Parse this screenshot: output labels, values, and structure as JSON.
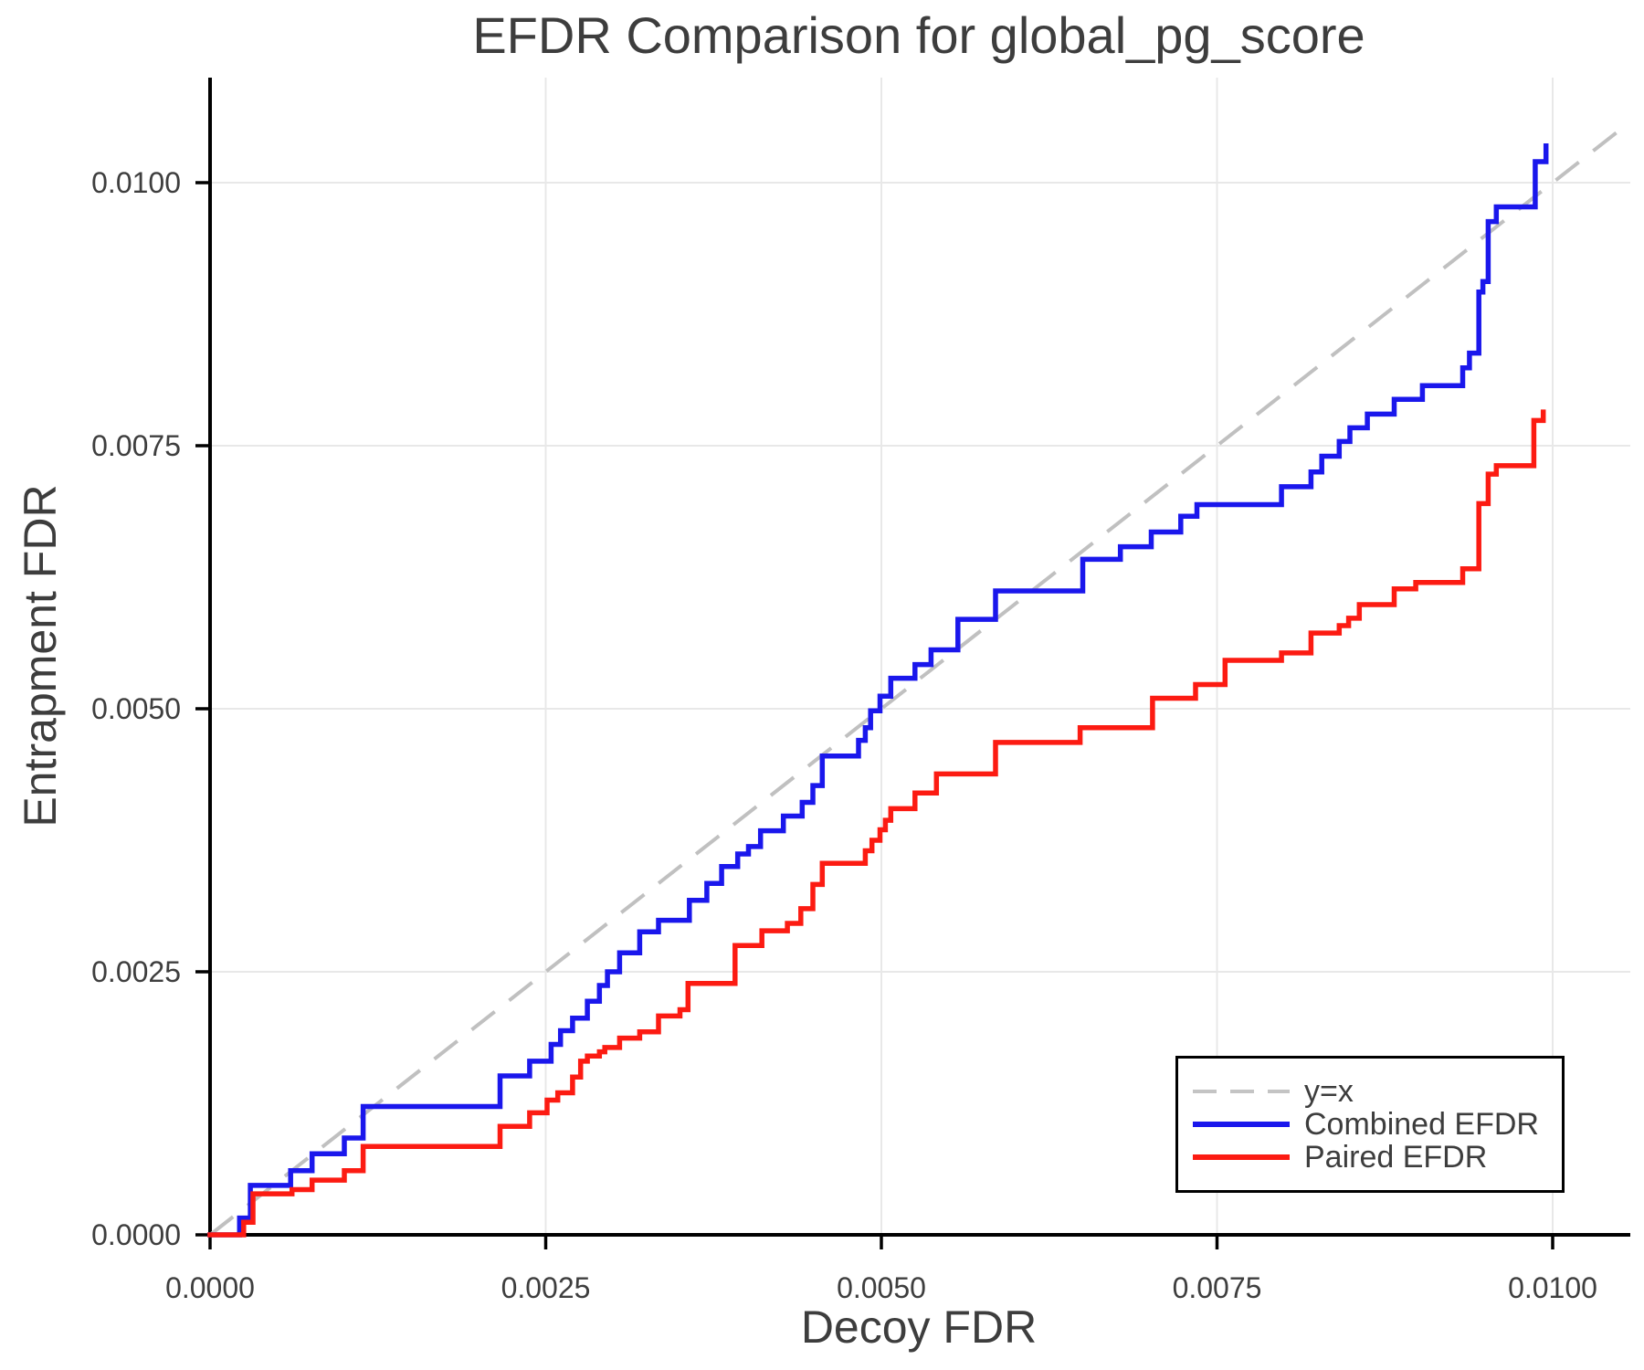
{
  "chart_data": {
    "type": "line",
    "title": "EFDR Comparison for global_pg_score",
    "xlabel": "Decoy FDR",
    "ylabel": "Entrapment FDR",
    "xlim": [
      0,
      0.01058
    ],
    "ylim": [
      0,
      0.011
    ],
    "grid": true,
    "legend_position": "lower right",
    "x_ticks": [
      0.0,
      0.0025,
      0.005,
      0.0075,
      0.01
    ],
    "x_tick_labels": [
      "0.0000",
      "0.0025",
      "0.0050",
      "0.0075",
      "0.0100"
    ],
    "y_ticks": [
      0.0,
      0.0025,
      0.005,
      0.0075,
      0.01
    ],
    "y_tick_labels": [
      "0.0000",
      "0.0025",
      "0.0050",
      "0.0075",
      "0.0100"
    ],
    "style": {
      "background": "#ffffff",
      "grid_color": "#e8e8e8",
      "spine_color": "#000000",
      "tick_color": "#000000",
      "tick_label_color": "#3e3e3e",
      "text_color": "#3d3d3d"
    },
    "series": [
      {
        "name": "y=x",
        "style": "dashed",
        "color": "#c0c0c0",
        "points": [
          [
            0,
            0
          ],
          [
            0.0105,
            0.0105
          ]
        ]
      },
      {
        "name": "Combined EFDR",
        "style": "step",
        "color": "#1a17ec",
        "points": [
          [
            0.00022,
            0.00016
          ],
          [
            0.0003,
            0.00047
          ],
          [
            0.0006,
            0.00061
          ],
          [
            0.00076,
            0.00077
          ],
          [
            0.001,
            0.00092
          ],
          [
            0.00114,
            0.00122
          ],
          [
            0.00216,
            0.00151
          ],
          [
            0.00238,
            0.00165
          ],
          [
            0.00254,
            0.00181
          ],
          [
            0.00261,
            0.00194
          ],
          [
            0.0027,
            0.00206
          ],
          [
            0.00281,
            0.00222
          ],
          [
            0.0029,
            0.00237
          ],
          [
            0.00296,
            0.0025
          ],
          [
            0.00305,
            0.00268
          ],
          [
            0.0032,
            0.00288
          ],
          [
            0.00334,
            0.00299
          ],
          [
            0.00357,
            0.00318
          ],
          [
            0.0037,
            0.00334
          ],
          [
            0.00381,
            0.0035
          ],
          [
            0.00393,
            0.00362
          ],
          [
            0.00401,
            0.00369
          ],
          [
            0.0041,
            0.00384
          ],
          [
            0.00427,
            0.00398
          ],
          [
            0.00441,
            0.00411
          ],
          [
            0.00449,
            0.00427
          ],
          [
            0.00456,
            0.00455
          ],
          [
            0.00483,
            0.0047
          ],
          [
            0.00488,
            0.00482
          ],
          [
            0.00492,
            0.00498
          ],
          [
            0.00499,
            0.00512
          ],
          [
            0.00507,
            0.00529
          ],
          [
            0.00525,
            0.00542
          ],
          [
            0.00537,
            0.00556
          ],
          [
            0.00557,
            0.00585
          ],
          [
            0.00585,
            0.00612
          ],
          [
            0.0065,
            0.00642
          ],
          [
            0.00678,
            0.00654
          ],
          [
            0.00701,
            0.00668
          ],
          [
            0.00723,
            0.00683
          ],
          [
            0.00735,
            0.00694
          ],
          [
            0.00798,
            0.00711
          ],
          [
            0.0082,
            0.00725
          ],
          [
            0.00828,
            0.0074
          ],
          [
            0.00841,
            0.00754
          ],
          [
            0.00849,
            0.00767
          ],
          [
            0.00862,
            0.0078
          ],
          [
            0.00882,
            0.00794
          ],
          [
            0.00903,
            0.00807
          ],
          [
            0.00933,
            0.00824
          ],
          [
            0.00938,
            0.00838
          ],
          [
            0.00945,
            0.00896
          ],
          [
            0.00948,
            0.00906
          ],
          [
            0.00952,
            0.00963
          ],
          [
            0.00958,
            0.00977
          ],
          [
            0.00987,
            0.0102
          ],
          [
            0.00995,
            0.01035
          ]
        ]
      },
      {
        "name": "Paired EFDR",
        "style": "step",
        "color": "#fc1b12",
        "points": [
          [
            0.00025,
            0.00012
          ],
          [
            0.00032,
            0.00039
          ],
          [
            0.00061,
            0.00043
          ],
          [
            0.00076,
            0.00052
          ],
          [
            0.001,
            0.00061
          ],
          [
            0.00114,
            0.00084
          ],
          [
            0.00216,
            0.00103
          ],
          [
            0.00238,
            0.00116
          ],
          [
            0.00251,
            0.00128
          ],
          [
            0.00259,
            0.00135
          ],
          [
            0.0027,
            0.0015
          ],
          [
            0.00276,
            0.00165
          ],
          [
            0.00281,
            0.0017
          ],
          [
            0.0029,
            0.00174
          ],
          [
            0.00294,
            0.00178
          ],
          [
            0.00305,
            0.00187
          ],
          [
            0.0032,
            0.00193
          ],
          [
            0.00334,
            0.00208
          ],
          [
            0.0035,
            0.00214
          ],
          [
            0.00356,
            0.00239
          ],
          [
            0.00391,
            0.00275
          ],
          [
            0.00411,
            0.00289
          ],
          [
            0.0043,
            0.00296
          ],
          [
            0.0044,
            0.0031
          ],
          [
            0.00449,
            0.00333
          ],
          [
            0.00456,
            0.00353
          ],
          [
            0.00488,
            0.00365
          ],
          [
            0.00493,
            0.00375
          ],
          [
            0.00499,
            0.00385
          ],
          [
            0.00503,
            0.00394
          ],
          [
            0.00507,
            0.00405
          ],
          [
            0.00525,
            0.0042
          ],
          [
            0.00541,
            0.00438
          ],
          [
            0.00585,
            0.00468
          ],
          [
            0.00648,
            0.00482
          ],
          [
            0.00702,
            0.0051
          ],
          [
            0.00734,
            0.00523
          ],
          [
            0.00756,
            0.00546
          ],
          [
            0.00798,
            0.00553
          ],
          [
            0.0082,
            0.00572
          ],
          [
            0.00841,
            0.00579
          ],
          [
            0.00848,
            0.00586
          ],
          [
            0.00856,
            0.00599
          ],
          [
            0.00882,
            0.00614
          ],
          [
            0.00898,
            0.0062
          ],
          [
            0.00933,
            0.00633
          ],
          [
            0.00945,
            0.00695
          ],
          [
            0.00952,
            0.00723
          ],
          [
            0.00958,
            0.00731
          ],
          [
            0.00986,
            0.00774
          ],
          [
            0.00993,
            0.00782
          ]
        ]
      }
    ]
  }
}
